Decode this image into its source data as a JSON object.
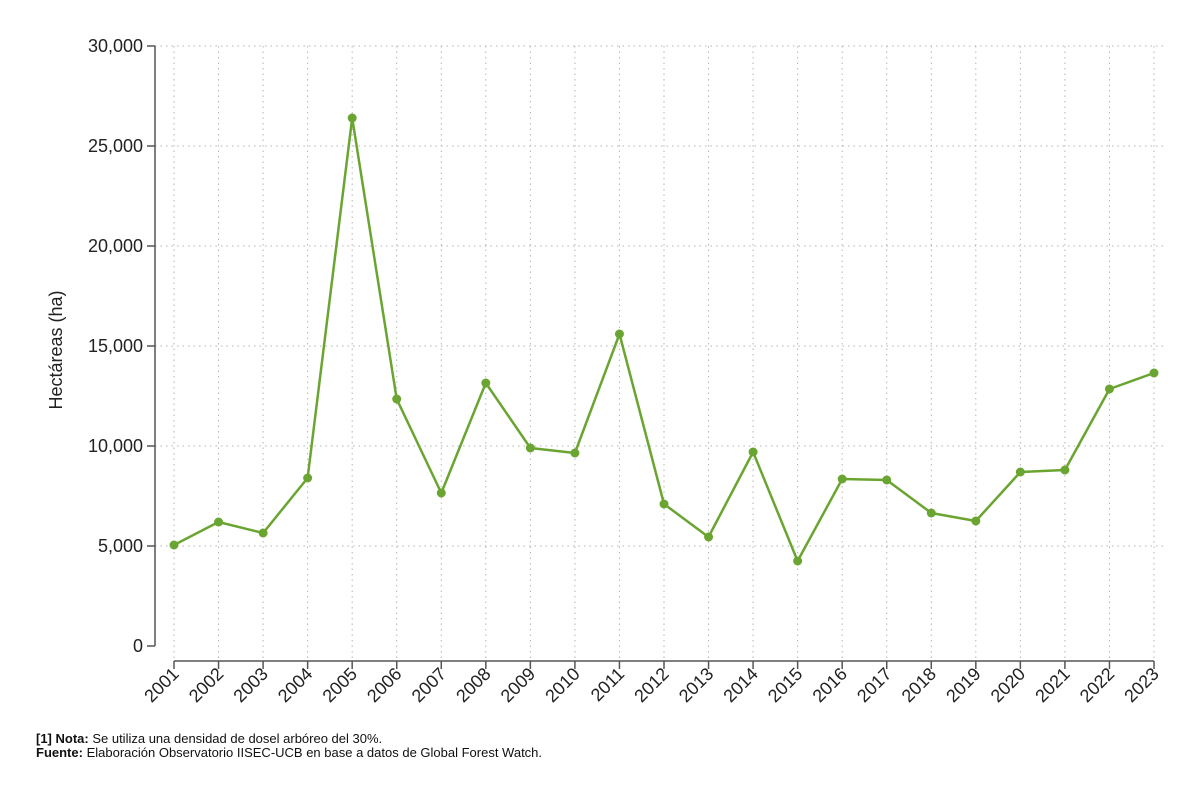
{
  "chart_data": {
    "type": "line",
    "title": "",
    "xlabel": "",
    "ylabel": "Hectáreas (ha)",
    "ylim": [
      0,
      30000
    ],
    "yticks": [
      0,
      5000,
      10000,
      15000,
      20000,
      25000,
      30000
    ],
    "ytick_labels": [
      "0",
      "5,000",
      "10,000",
      "15,000",
      "20,000",
      "25,000",
      "30,000"
    ],
    "grid": true,
    "color": "#6aa531",
    "categories": [
      "2001",
      "2002",
      "2003",
      "2004",
      "2005",
      "2006",
      "2007",
      "2008",
      "2009",
      "2010",
      "2011",
      "2012",
      "2013",
      "2014",
      "2015",
      "2016",
      "2017",
      "2018",
      "2019",
      "2020",
      "2021",
      "2022",
      "2023"
    ],
    "series": [
      {
        "values": [
          5050,
          6200,
          5650,
          8400,
          26400,
          12350,
          7650,
          13150,
          9900,
          9650,
          15600,
          7100,
          5450,
          9700,
          4250,
          8350,
          8300,
          6650,
          6250,
          8700,
          8800,
          12850,
          13650
        ]
      }
    ]
  },
  "notes": {
    "note_label": "[1] Nota:",
    "note_text": " Se utiliza una densidad de dosel arbóreo del 30%.",
    "source_label": "Fuente:",
    "source_text": " Elaboración Observatorio IISEC-UCB en base a datos de Global Forest Watch."
  }
}
